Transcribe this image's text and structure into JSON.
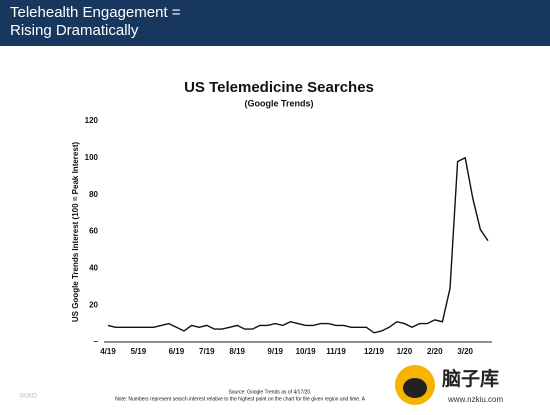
{
  "header": {
    "title_line1": "Telehealth Engagement =",
    "title_line2": "Rising Dramatically"
  },
  "chart_data": {
    "type": "line",
    "title": "US Telemedicine Searches",
    "subtitle": "(Google Trends)",
    "y_label": "US Google Trends Interest (100 = Peak Interest)",
    "categories": [
      "4/19",
      null,
      null,
      null,
      "5/19",
      null,
      null,
      null,
      null,
      "6/19",
      null,
      null,
      null,
      "7/19",
      null,
      null,
      null,
      "8/19",
      null,
      null,
      null,
      null,
      "9/19",
      null,
      null,
      null,
      "10/19",
      null,
      null,
      null,
      "11/19",
      null,
      null,
      null,
      null,
      "12/19",
      null,
      null,
      null,
      "1/20",
      null,
      null,
      null,
      "2/20",
      null,
      null,
      null,
      "3/20",
      null,
      null,
      null
    ],
    "series": [
      {
        "name": "US Telemedicine Searches",
        "color": "#111111",
        "values": [
          9,
          8,
          8,
          8,
          8,
          8,
          8,
          9,
          10,
          8,
          6,
          9,
          8,
          9,
          7,
          7,
          8,
          9,
          7,
          7,
          9,
          9,
          10,
          9,
          11,
          10,
          9,
          9,
          10,
          10,
          9,
          9,
          8,
          8,
          8,
          5,
          6,
          8,
          11,
          10,
          8,
          10,
          10,
          12,
          11,
          29,
          98,
          100,
          78,
          61,
          55
        ]
      }
    ],
    "ylim": [
      0,
      120
    ],
    "yticks": [
      {
        "value": 0,
        "label": "–"
      },
      20,
      40,
      60,
      80,
      100,
      120
    ],
    "grid": false
  },
  "footer": {
    "source": "Source: Google Trends as of 4/17/20.",
    "note": "Note: Numbers represent search interest relative to the highest point on the chart for the given region and time. A",
    "brand": "BOND"
  },
  "watermark": {
    "name": "脑子库",
    "url": "www.nzkiu.com"
  }
}
